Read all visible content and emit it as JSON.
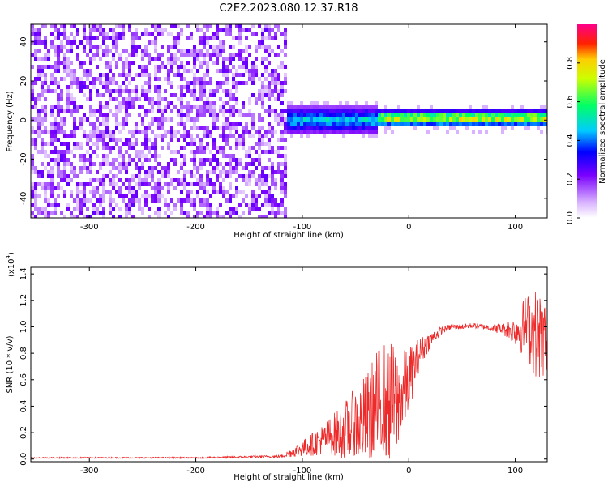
{
  "title": "C2E2.2023.080.12.37.R18",
  "colors": {
    "heat_low": "#7a00ff",
    "heat_mid": "#00ff7a",
    "heat_high": "#ff0000",
    "snr_line": "#ee2b2b",
    "axis": "#000000"
  },
  "chart_data": [
    {
      "type": "heatmap",
      "title": "C2E2.2023.080.12.37.R18",
      "xlabel": "Height of straight line (km)",
      "ylabel": "Frequency (Hz)",
      "xlim": [
        -355,
        130
      ],
      "ylim": [
        -50,
        49
      ],
      "xticks": [
        -300,
        -200,
        -100,
        0,
        100
      ],
      "xtick_labels": [
        "-300",
        "-200",
        "-100",
        "0",
        "100"
      ],
      "yticks": [
        -40,
        -20,
        0,
        20,
        40
      ],
      "ytick_labels": [
        "-40",
        "-20",
        "0",
        "20",
        "40"
      ],
      "colorbar": {
        "label": "Normalized spectral amplitude",
        "range": [
          0,
          1
        ],
        "ticks": [
          0.0,
          0.2,
          0.4,
          0.6,
          0.8
        ],
        "tick_labels": [
          "0.0",
          "0.2",
          "0.4",
          "0.6",
          "0.8"
        ]
      },
      "regions": [
        {
          "x": [
            -355,
            -113
          ],
          "description": "broadband noise across all frequencies",
          "amplitude": [
            0.05,
            0.25
          ]
        },
        {
          "x": [
            -113,
            -30
          ],
          "center_freq": 0,
          "half_width": 7,
          "amplitude": [
            0.15,
            0.55
          ]
        },
        {
          "x": [
            -30,
            130
          ],
          "center_freq": 1,
          "half_width": 4,
          "amplitude": [
            0.2,
            0.95
          ]
        }
      ]
    },
    {
      "type": "line",
      "xlabel": "Height of straight line (km)",
      "ylabel": "SNR (10 * v/v)",
      "y_multiplier_label": "(x10",
      "y_multiplier_exp": "4",
      "y_multiplier_close": ")",
      "xlim": [
        -355,
        130
      ],
      "ylim": [
        -0.02,
        1.45
      ],
      "xticks": [
        -300,
        -200,
        -100,
        0,
        100
      ],
      "xtick_labels": [
        "-300",
        "-200",
        "-100",
        "0",
        "100"
      ],
      "yticks": [
        0.0,
        0.2,
        0.4,
        0.6,
        0.8,
        1.0,
        1.2,
        1.4
      ],
      "ytick_labels": [
        "0.0",
        "0.2",
        "0.4",
        "0.6",
        "0.8",
        "1.0",
        "1.2",
        "1.4"
      ],
      "series": [
        {
          "color": "#ee2b2b",
          "x": [
            -355,
            -300,
            -200,
            -120,
            -100,
            -80,
            -60,
            -40,
            -30,
            -20,
            -10,
            0,
            10,
            20,
            30,
            40,
            50,
            60,
            70,
            80,
            90,
            100,
            110,
            120,
            130
          ],
          "y": [
            0.01,
            0.01,
            0.01,
            0.02,
            0.08,
            0.15,
            0.22,
            0.3,
            0.38,
            0.45,
            0.4,
            0.6,
            0.8,
            0.9,
            0.97,
            1.0,
            1.0,
            1.01,
            1.0,
            0.99,
            0.98,
            0.98,
            1.0,
            0.95,
            0.9
          ],
          "spread": [
            0.005,
            0.005,
            0.005,
            0.01,
            0.06,
            0.12,
            0.22,
            0.35,
            0.45,
            0.5,
            0.4,
            0.25,
            0.12,
            0.06,
            0.03,
            0.02,
            0.02,
            0.02,
            0.02,
            0.03,
            0.05,
            0.12,
            0.25,
            0.35,
            0.3
          ]
        }
      ]
    }
  ]
}
